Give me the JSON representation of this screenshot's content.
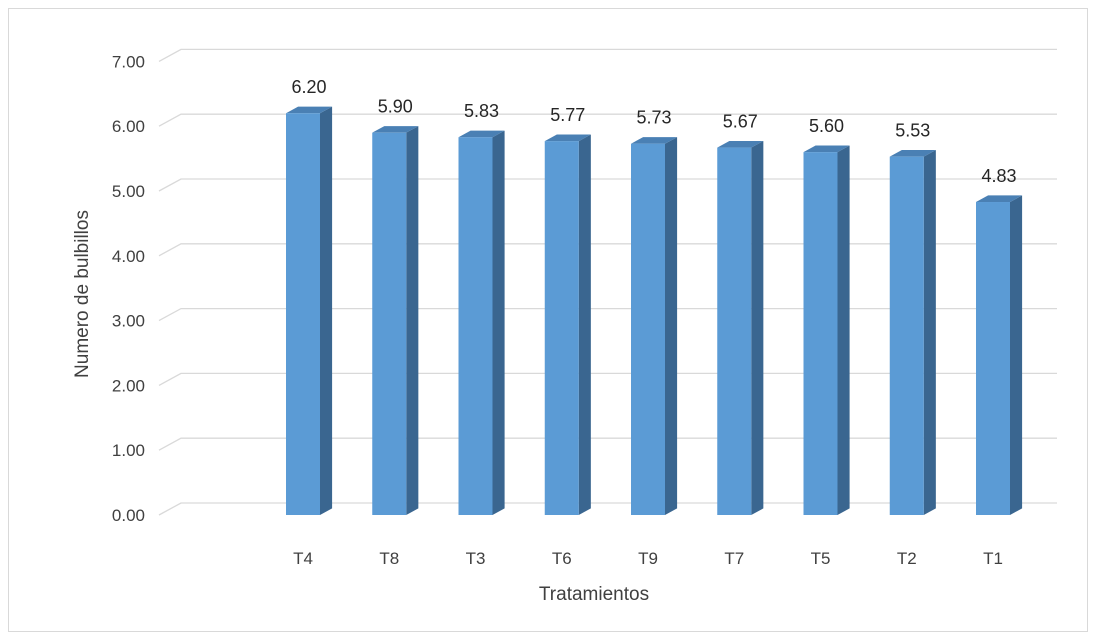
{
  "chart_data": {
    "type": "bar",
    "style": "3d-column",
    "title": "",
    "xlabel": "Tratamientos",
    "ylabel": "Numero de bulbillos",
    "categories": [
      "T4",
      "T8",
      "T3",
      "T6",
      "T9",
      "T7",
      "T5",
      "T2",
      "T1"
    ],
    "values": [
      6.2,
      5.9,
      5.83,
      5.77,
      5.73,
      5.67,
      5.6,
      5.53,
      4.83
    ],
    "data_labels": [
      "6.20",
      "5.90",
      "5.83",
      "5.77",
      "5.73",
      "5.67",
      "5.60",
      "5.53",
      "4.83"
    ],
    "ylim": [
      0,
      7
    ],
    "yticks": [
      "0.00",
      "1.00",
      "2.00",
      "3.00",
      "4.00",
      "5.00",
      "6.00",
      "7.00"
    ],
    "grid": true,
    "legend": "none",
    "colors": {
      "bar_front": "#5b9bd5",
      "bar_side": "#3a6690",
      "bar_top": "#4a80b4",
      "grid": "#d9d9d9",
      "text": "#404040"
    }
  }
}
